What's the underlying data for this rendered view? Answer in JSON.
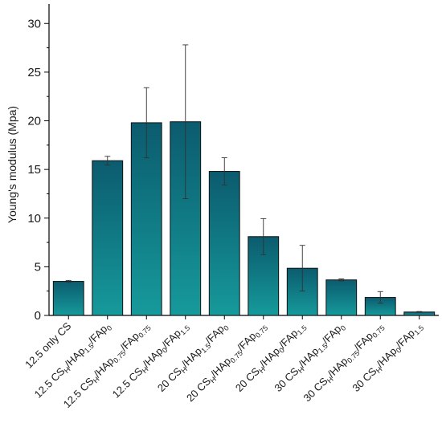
{
  "chart_data": {
    "type": "bar",
    "title": "",
    "xlabel": "",
    "ylabel": "Young's modulus (Mpa)",
    "ylim": [
      0,
      32
    ],
    "yticks": [
      0,
      5,
      10,
      15,
      20,
      25,
      30
    ],
    "grid": false,
    "bar_color_top": "#0b5b6e",
    "bar_color_bottom": "#169a9b",
    "categories": [
      {
        "base": "12.5 only CS",
        "sub": ""
      },
      {
        "base": "12.5 CS",
        "sub": "H",
        "rest": [
          [
            "/HAp",
            ""
          ],
          [
            "1.5",
            "sub"
          ],
          [
            "/FAp",
            ""
          ],
          [
            "0",
            "sub"
          ]
        ]
      },
      {
        "base": "12.5 CS",
        "sub": "H",
        "rest": [
          [
            "/HAp",
            ""
          ],
          [
            "0.75",
            "sub"
          ],
          [
            "/FAp",
            ""
          ],
          [
            "0.75",
            "sub"
          ]
        ]
      },
      {
        "base": "12.5 CS",
        "sub": "H",
        "rest": [
          [
            "/HAp",
            ""
          ],
          [
            "0",
            "sub"
          ],
          [
            "/FAp",
            ""
          ],
          [
            "1.5",
            "sub"
          ]
        ]
      },
      {
        "base": "20 CS",
        "sub": "H",
        "rest": [
          [
            "/HAp",
            ""
          ],
          [
            "1.5",
            "sub"
          ],
          [
            "/FAp",
            ""
          ],
          [
            "0",
            "sub"
          ]
        ]
      },
      {
        "base": "20 CS",
        "sub": "H",
        "rest": [
          [
            "/HAp",
            ""
          ],
          [
            "0.75",
            "sub"
          ],
          [
            "/FAp",
            ""
          ],
          [
            "0.75",
            "sub"
          ]
        ]
      },
      {
        "base": "20 CS",
        "sub": "H",
        "rest": [
          [
            "/HAp",
            ""
          ],
          [
            "0",
            "sub"
          ],
          [
            "/FAp",
            ""
          ],
          [
            "1.5",
            "sub"
          ]
        ]
      },
      {
        "base": "30 CS",
        "sub": "H",
        "rest": [
          [
            "/HAp",
            ""
          ],
          [
            "1.5",
            "sub"
          ],
          [
            "/FAp",
            ""
          ],
          [
            "0",
            "sub"
          ]
        ]
      },
      {
        "base": "30 CS",
        "sub": "H",
        "rest": [
          [
            "/HAp",
            ""
          ],
          [
            "0.75",
            "sub"
          ],
          [
            "/FAp",
            ""
          ],
          [
            "0.75",
            "sub"
          ]
        ]
      },
      {
        "base": "30 CS",
        "sub": "H",
        "rest": [
          [
            "/HAp",
            ""
          ],
          [
            "0",
            "sub"
          ],
          [
            "/FAp",
            ""
          ],
          [
            "1.5",
            "sub"
          ]
        ]
      }
    ],
    "values": [
      3.5,
      15.9,
      19.8,
      19.9,
      14.8,
      8.1,
      4.85,
      3.65,
      1.85,
      0.35
    ],
    "errors": [
      0.1,
      0.45,
      3.6,
      7.9,
      1.4,
      1.85,
      2.35,
      0.1,
      0.6,
      0.05
    ]
  }
}
